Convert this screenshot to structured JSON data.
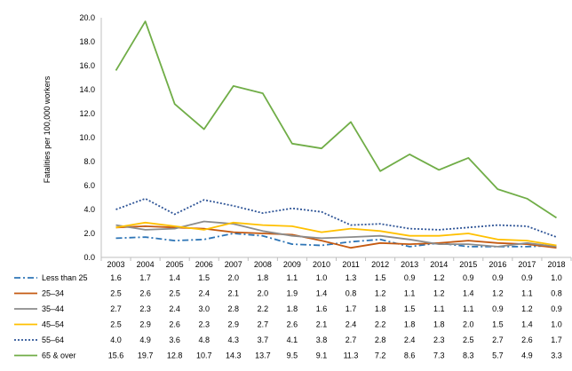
{
  "chart_data": {
    "type": "line",
    "ylabel": "Fatalities per 100,000 workers",
    "ylim": [
      0,
      20
    ],
    "yticks": [
      "0.0",
      "2.0",
      "4.0",
      "6.0",
      "8.0",
      "10.0",
      "12.0",
      "14.0",
      "16.0",
      "18.0",
      "20.0"
    ],
    "grid": false,
    "legend": "data-table-below",
    "categories": [
      "2003",
      "2004",
      "2005",
      "2006",
      "2007",
      "2008",
      "2009",
      "2010",
      "2011",
      "2012",
      "2013",
      "2014",
      "2015",
      "2016",
      "2017",
      "2018"
    ],
    "series": [
      {
        "name": "Less than 25",
        "color": "#2e75b6",
        "dash": "dash-dot",
        "values": [
          1.6,
          1.7,
          1.4,
          1.5,
          2.0,
          1.8,
          1.1,
          1.0,
          1.3,
          1.5,
          0.9,
          1.2,
          0.9,
          0.9,
          0.9,
          1.0
        ],
        "labels": [
          "1.6",
          "1.7",
          "1.4",
          "1.5",
          "2.0",
          "1.8",
          "1.1",
          "1.0",
          "1.3",
          "1.5",
          "0.9",
          "1.2",
          "0.9",
          "0.9",
          "0.9",
          "1.0"
        ]
      },
      {
        "name": "25–34",
        "color": "#c55a11",
        "dash": "solid",
        "values": [
          2.5,
          2.6,
          2.5,
          2.4,
          2.1,
          2.0,
          1.9,
          1.4,
          0.8,
          1.2,
          1.1,
          1.2,
          1.4,
          1.2,
          1.1,
          0.8
        ],
        "labels": [
          "2.5",
          "2.6",
          "2.5",
          "2.4",
          "2.1",
          "2.0",
          "1.9",
          "1.4",
          "0.8",
          "1.2",
          "1.1",
          "1.2",
          "1.4",
          "1.2",
          "1.1",
          "0.8"
        ]
      },
      {
        "name": "35–44",
        "color": "#8c8c8c",
        "dash": "solid",
        "values": [
          2.7,
          2.3,
          2.4,
          3.0,
          2.8,
          2.2,
          1.8,
          1.6,
          1.7,
          1.8,
          1.5,
          1.1,
          1.1,
          0.9,
          1.2,
          0.9
        ],
        "labels": [
          "2.7",
          "2.3",
          "2.4",
          "3.0",
          "2.8",
          "2.2",
          "1.8",
          "1.6",
          "1.7",
          "1.8",
          "1.5",
          "1.1",
          "1.1",
          "0.9",
          "1.2",
          "0.9"
        ]
      },
      {
        "name": "45–54",
        "color": "#ffc000",
        "dash": "solid",
        "values": [
          2.5,
          2.9,
          2.6,
          2.3,
          2.9,
          2.7,
          2.6,
          2.1,
          2.4,
          2.2,
          1.8,
          1.8,
          2.0,
          1.5,
          1.4,
          1.0
        ],
        "labels": [
          "2.5",
          "2.9",
          "2.6",
          "2.3",
          "2.9",
          "2.7",
          "2.6",
          "2.1",
          "2.4",
          "2.2",
          "1.8",
          "1.8",
          "2.0",
          "1.5",
          "1.4",
          "1.0"
        ]
      },
      {
        "name": "55–64",
        "color": "#2f5597",
        "dash": "dotted",
        "values": [
          4.0,
          4.9,
          3.6,
          4.8,
          4.3,
          3.7,
          4.1,
          3.8,
          2.7,
          2.8,
          2.4,
          2.3,
          2.5,
          2.7,
          2.6,
          1.7
        ],
        "labels": [
          "4.0",
          "4.9",
          "3.6",
          "4.8",
          "4.3",
          "3.7",
          "4.1",
          "3.8",
          "2.7",
          "2.8",
          "2.4",
          "2.3",
          "2.5",
          "2.7",
          "2.6",
          "1.7"
        ]
      },
      {
        "name": "65 & over",
        "color": "#70ad47",
        "dash": "solid",
        "values": [
          15.6,
          19.7,
          12.8,
          10.7,
          14.3,
          13.7,
          9.5,
          9.1,
          11.3,
          7.2,
          8.6,
          7.3,
          8.3,
          5.7,
          4.9,
          3.3
        ],
        "labels": [
          "15.6",
          "19.7",
          "12.8",
          "10.7",
          "14.3",
          "13.7",
          "9.5",
          "9.1",
          "11.3",
          "7.2",
          "8.6",
          "7.3",
          "8.3",
          "5.7",
          "4.9",
          "3.3"
        ]
      }
    ]
  }
}
